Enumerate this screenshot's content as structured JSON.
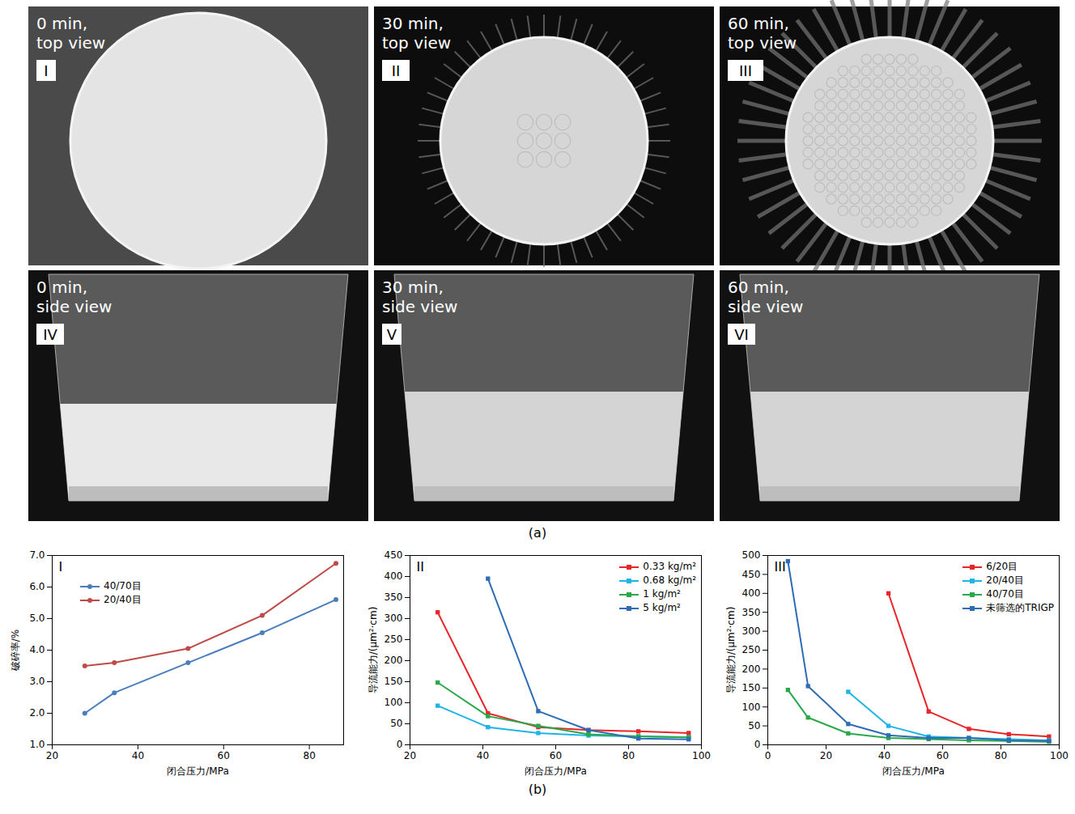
{
  "photos": {
    "label": "(a)",
    "panels": [
      {
        "numeral": "I",
        "caption": [
          "0 min,",
          "top view"
        ],
        "view": "top"
      },
      {
        "numeral": "II",
        "caption": [
          "30 min,",
          "top view"
        ],
        "view": "top"
      },
      {
        "numeral": "III",
        "caption": [
          "60 min,",
          "top view"
        ],
        "view": "top"
      },
      {
        "numeral": "IV",
        "caption": [
          "0 min,",
          "side view"
        ],
        "view": "side"
      },
      {
        "numeral": "V",
        "caption": [
          "30 min,",
          "side view"
        ],
        "view": "side"
      },
      {
        "numeral": "VI",
        "caption": [
          "60 min,",
          "side view"
        ],
        "view": "side"
      }
    ]
  },
  "chart_label": "(b)",
  "chart_data": [
    {
      "type": "line",
      "panel": "I",
      "x_label": "闭合压力/MPa",
      "y_label": "破碎率/%",
      "xlim": [
        20,
        88
      ],
      "xticks": [
        20,
        40,
        60,
        80
      ],
      "ylim": [
        1,
        7
      ],
      "yticks": [
        1,
        2,
        3,
        4,
        5,
        6,
        7
      ],
      "legend": "upper left",
      "marker": "circle",
      "series": [
        {
          "name": "40/70目",
          "color": "#4a7ebb",
          "x": [
            27.6,
            34.5,
            51.7,
            69,
            86.2
          ],
          "values": [
            2.0,
            2.65,
            3.6,
            4.55,
            5.6
          ]
        },
        {
          "name": "20/40目",
          "color": "#be4b48",
          "x": [
            27.6,
            34.5,
            51.7,
            69,
            86.2
          ],
          "values": [
            3.5,
            3.6,
            4.05,
            5.1,
            6.75
          ]
        }
      ]
    },
    {
      "type": "line",
      "panel": "II",
      "x_label": "闭合压力/MPa",
      "y_label": "导流能力/(μm²·cm)",
      "xlim": [
        20,
        100
      ],
      "xticks": [
        20,
        40,
        60,
        80,
        100
      ],
      "ylim": [
        0,
        450
      ],
      "yticks": [
        0,
        50,
        100,
        150,
        200,
        250,
        300,
        350,
        400,
        450
      ],
      "legend": "upper right",
      "marker": "square",
      "series": [
        {
          "name": "0.33 kg/m²",
          "color": "#e8262a",
          "x": [
            27.6,
            41.4,
            55.2,
            69,
            82.7,
            96.5
          ],
          "values": [
            315,
            75,
            42,
            35,
            32,
            28
          ]
        },
        {
          "name": "0.68 kg/m²",
          "color": "#1fb4e6",
          "x": [
            27.6,
            41.4,
            55.2,
            69,
            82.7,
            96.5
          ],
          "values": [
            93,
            42,
            28,
            22,
            20,
            18
          ]
        },
        {
          "name": "1 kg/m²",
          "color": "#2aa84a",
          "x": [
            27.6,
            41.4,
            55.2,
            69,
            82.7,
            96.5
          ],
          "values": [
            148,
            68,
            45,
            25,
            20,
            18
          ]
        },
        {
          "name": "5 kg/m²",
          "color": "#2e6cb5",
          "x": [
            41.4,
            55.2,
            69,
            82.7,
            96.5
          ],
          "values": [
            395,
            80,
            35,
            15,
            13
          ]
        }
      ]
    },
    {
      "type": "line",
      "panel": "III",
      "x_label": "闭合压力/MPa",
      "y_label": "导流能力/(μm²·cm)",
      "xlim": [
        0,
        100
      ],
      "xticks": [
        0,
        20,
        40,
        60,
        80,
        100
      ],
      "ylim": [
        0,
        500
      ],
      "yticks": [
        0,
        50,
        100,
        150,
        200,
        250,
        300,
        350,
        400,
        450,
        500
      ],
      "legend": "upper right",
      "marker": "square",
      "series": [
        {
          "name": "6/20目",
          "color": "#e8262a",
          "x": [
            41.4,
            55.2,
            69,
            82.7,
            96.5
          ],
          "values": [
            400,
            88,
            42,
            28,
            22
          ]
        },
        {
          "name": "20/40目",
          "color": "#1fb4e6",
          "x": [
            27.6,
            41.4,
            55.2,
            69,
            82.7,
            96.5
          ],
          "values": [
            140,
            50,
            22,
            18,
            15,
            12
          ]
        },
        {
          "name": "40/70目",
          "color": "#2aa84a",
          "x": [
            6.9,
            13.8,
            27.6,
            41.4,
            55.2,
            69,
            82.7,
            96.5
          ],
          "values": [
            145,
            72,
            30,
            18,
            15,
            12,
            10,
            8
          ]
        },
        {
          "name": "未筛选的TRIGP",
          "color": "#2e6cb5",
          "x": [
            6.9,
            13.8,
            27.6,
            41.4,
            55.2,
            69,
            82.7,
            96.5
          ],
          "values": [
            485,
            155,
            55,
            25,
            18,
            18,
            12,
            10
          ]
        }
      ]
    }
  ]
}
